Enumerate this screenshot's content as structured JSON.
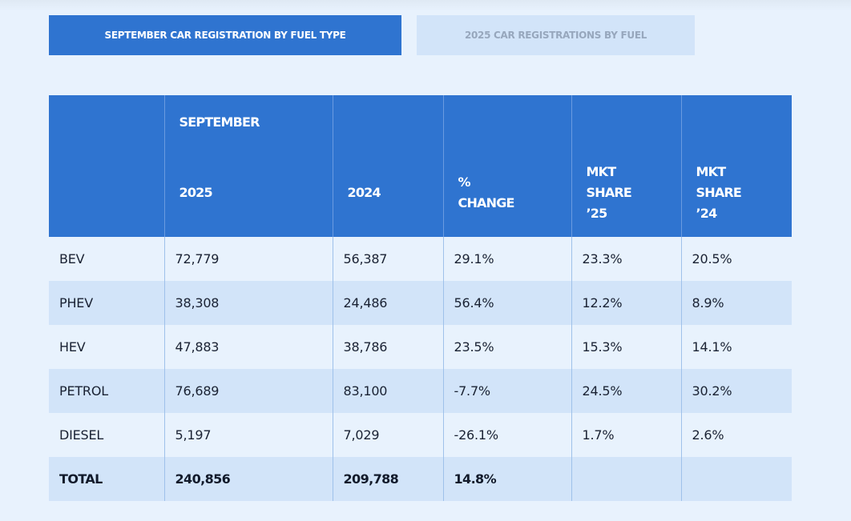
{
  "tabs": {
    "active": "SEPTEMBER CAR REGISTRATION BY FUEL TYPE",
    "inactive": "2025 CAR REGISTRATIONS BY FUEL"
  },
  "table": {
    "header": {
      "group": "SEPTEMBER",
      "col2025": "2025",
      "col2024": "2024",
      "change_line1": "%",
      "change_line2": "CHANGE",
      "mkt25_line1": "MKT",
      "mkt25_line2": "SHARE",
      "mkt25_line3": "’25",
      "mkt24_line1": "MKT",
      "mkt24_line2": "SHARE",
      "mkt24_line3": "’24"
    },
    "rows": [
      {
        "fuel": "BEV",
        "y2025": "72,779",
        "y2024": "56,387",
        "change": "29.1%",
        "share25": "23.3%",
        "share24": "20.5%"
      },
      {
        "fuel": "PHEV",
        "y2025": "38,308",
        "y2024": "24,486",
        "change": "56.4%",
        "share25": "12.2%",
        "share24": "8.9%"
      },
      {
        "fuel": "HEV",
        "y2025": "47,883",
        "y2024": "38,786",
        "change": "23.5%",
        "share25": "15.3%",
        "share24": "14.1%"
      },
      {
        "fuel": "PETROL",
        "y2025": "76,689",
        "y2024": "83,100",
        "change": "-7.7%",
        "share25": "24.5%",
        "share24": "30.2%"
      },
      {
        "fuel": "DIESEL",
        "y2025": "5,197",
        "y2024": "7,029",
        "change": "-26.1%",
        "share25": "1.7%",
        "share24": "2.6%"
      }
    ],
    "total": {
      "fuel": "TOTAL",
      "y2025": "240,856",
      "y2024": "209,788",
      "change": "14.8%",
      "share25": "",
      "share24": ""
    }
  }
}
